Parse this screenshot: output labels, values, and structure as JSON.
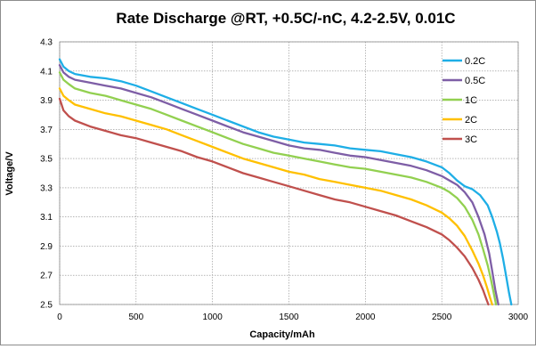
{
  "chart_data": {
    "type": "line",
    "title": "Rate Discharge @RT, +0.5C/-nC, 4.2-2.5V, 0.01C",
    "xlabel": "Capacity/mAh",
    "ylabel": "Voltage/V",
    "xlim": [
      0,
      3000
    ],
    "ylim": [
      2.5,
      4.3
    ],
    "xticks": [
      0,
      500,
      1000,
      1500,
      2000,
      2500,
      3000
    ],
    "yticks": [
      2.5,
      2.7,
      2.9,
      3.1,
      3.3,
      3.5,
      3.7,
      3.9,
      4.1,
      4.3
    ],
    "ytick_labels": [
      "2.5",
      "2.7",
      "2.9",
      "3.1",
      "3.3",
      "3.5",
      "3.7",
      "3.9",
      "4.1",
      "4.3"
    ],
    "grid": true,
    "legend_position": "top-right",
    "series": [
      {
        "name": "0.2C",
        "color": "#1eaee6",
        "x": [
          0,
          25,
          60,
          100,
          200,
          300,
          400,
          500,
          600,
          700,
          800,
          900,
          1000,
          1100,
          1200,
          1300,
          1400,
          1500,
          1600,
          1700,
          1800,
          1900,
          2000,
          2100,
          2200,
          2300,
          2400,
          2500,
          2550,
          2600,
          2650,
          2700,
          2750,
          2800,
          2830,
          2860,
          2880,
          2900,
          2920,
          2940,
          2955
        ],
        "y": [
          4.18,
          4.13,
          4.1,
          4.08,
          4.06,
          4.05,
          4.03,
          4.0,
          3.96,
          3.92,
          3.88,
          3.84,
          3.8,
          3.76,
          3.72,
          3.68,
          3.65,
          3.63,
          3.61,
          3.6,
          3.59,
          3.57,
          3.56,
          3.55,
          3.53,
          3.51,
          3.48,
          3.44,
          3.4,
          3.35,
          3.31,
          3.29,
          3.25,
          3.18,
          3.1,
          3.0,
          2.92,
          2.82,
          2.7,
          2.58,
          2.5
        ]
      },
      {
        "name": "0.5C",
        "color": "#7e5ea6",
        "x": [
          0,
          25,
          60,
          100,
          200,
          300,
          400,
          500,
          600,
          700,
          800,
          900,
          1000,
          1100,
          1200,
          1300,
          1400,
          1500,
          1600,
          1700,
          1800,
          1900,
          2000,
          2100,
          2200,
          2300,
          2400,
          2500,
          2550,
          2600,
          2650,
          2700,
          2740,
          2780,
          2810,
          2830,
          2850,
          2870
        ],
        "y": [
          4.14,
          4.09,
          4.06,
          4.04,
          4.02,
          4.0,
          3.98,
          3.95,
          3.92,
          3.88,
          3.84,
          3.8,
          3.76,
          3.72,
          3.68,
          3.65,
          3.62,
          3.59,
          3.57,
          3.56,
          3.54,
          3.52,
          3.51,
          3.49,
          3.47,
          3.45,
          3.42,
          3.38,
          3.35,
          3.32,
          3.27,
          3.2,
          3.1,
          2.98,
          2.85,
          2.73,
          2.6,
          2.5
        ]
      },
      {
        "name": "1C",
        "color": "#92d050",
        "x": [
          0,
          25,
          60,
          100,
          200,
          300,
          400,
          500,
          600,
          700,
          800,
          900,
          1000,
          1100,
          1200,
          1300,
          1400,
          1500,
          1600,
          1700,
          1800,
          1900,
          2000,
          2100,
          2200,
          2300,
          2400,
          2500,
          2550,
          2600,
          2650,
          2700,
          2740,
          2770,
          2800,
          2820,
          2840,
          2855
        ],
        "y": [
          4.09,
          4.04,
          4.01,
          3.98,
          3.95,
          3.93,
          3.9,
          3.87,
          3.84,
          3.8,
          3.76,
          3.72,
          3.68,
          3.64,
          3.6,
          3.57,
          3.54,
          3.52,
          3.5,
          3.48,
          3.46,
          3.44,
          3.43,
          3.41,
          3.39,
          3.37,
          3.34,
          3.3,
          3.27,
          3.23,
          3.17,
          3.08,
          2.98,
          2.88,
          2.77,
          2.68,
          2.58,
          2.5
        ]
      },
      {
        "name": "2C",
        "color": "#ffc000",
        "x": [
          0,
          25,
          60,
          100,
          200,
          300,
          400,
          500,
          600,
          700,
          800,
          900,
          1000,
          1100,
          1200,
          1300,
          1400,
          1500,
          1600,
          1700,
          1800,
          1900,
          2000,
          2100,
          2200,
          2300,
          2400,
          2500,
          2550,
          2600,
          2650,
          2700,
          2740,
          2770,
          2795,
          2815,
          2830
        ],
        "y": [
          3.98,
          3.93,
          3.9,
          3.87,
          3.84,
          3.81,
          3.79,
          3.76,
          3.73,
          3.7,
          3.66,
          3.62,
          3.58,
          3.54,
          3.5,
          3.47,
          3.44,
          3.41,
          3.39,
          3.36,
          3.34,
          3.32,
          3.3,
          3.28,
          3.25,
          3.22,
          3.18,
          3.13,
          3.09,
          3.04,
          2.97,
          2.87,
          2.78,
          2.7,
          2.62,
          2.55,
          2.5
        ]
      },
      {
        "name": "3C",
        "color": "#c0504d",
        "x": [
          0,
          25,
          60,
          100,
          200,
          300,
          400,
          500,
          600,
          700,
          800,
          900,
          1000,
          1100,
          1200,
          1300,
          1400,
          1500,
          1600,
          1700,
          1800,
          1900,
          2000,
          2100,
          2200,
          2300,
          2400,
          2500,
          2550,
          2600,
          2650,
          2700,
          2740,
          2770,
          2790,
          2805
        ],
        "y": [
          3.91,
          3.83,
          3.79,
          3.76,
          3.72,
          3.69,
          3.66,
          3.64,
          3.61,
          3.58,
          3.55,
          3.51,
          3.48,
          3.44,
          3.4,
          3.37,
          3.34,
          3.31,
          3.28,
          3.25,
          3.22,
          3.2,
          3.17,
          3.14,
          3.11,
          3.07,
          3.03,
          2.98,
          2.94,
          2.89,
          2.83,
          2.75,
          2.67,
          2.6,
          2.54,
          2.5
        ]
      }
    ]
  }
}
